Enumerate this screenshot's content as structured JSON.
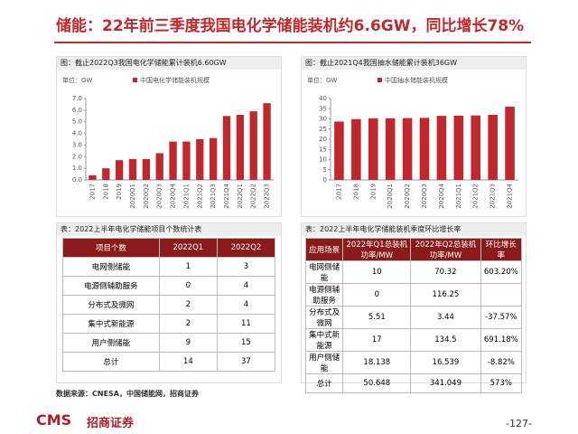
{
  "header": {
    "title": "储能：22年前三季度我国电化学储能装机约6.6GW，同比增长78%"
  },
  "chart_data": [
    {
      "type": "bar",
      "title": "图：截止2022Q3我国电化学储能累计装机6.60GW",
      "unit": "单位：GW",
      "categories": [
        "2017",
        "2018",
        "2019",
        "2020Q1",
        "2020Q2",
        "2020Q3",
        "2020Q4",
        "2021Q1",
        "2021Q2",
        "2021Q3",
        "2021Q4",
        "2022Q1",
        "2022Q2",
        "2022Q3"
      ],
      "series": [
        {
          "name": "中国电化学储能装机规模",
          "color": "#c0282d",
          "values": [
            0.4,
            1.0,
            1.7,
            1.8,
            1.8,
            2.3,
            3.3,
            3.3,
            3.5,
            3.6,
            5.5,
            5.6,
            5.9,
            6.6
          ]
        }
      ],
      "ylim": [
        0,
        7
      ],
      "yticks": [
        {
          "value": 0,
          "label": "0.0"
        },
        {
          "value": 1,
          "label": "1.0"
        },
        {
          "value": 2,
          "label": "2.0"
        },
        {
          "value": 3,
          "label": "3.0"
        },
        {
          "value": 4,
          "label": "4.0"
        },
        {
          "value": 5,
          "label": "5.0"
        },
        {
          "value": 6,
          "label": "6.0"
        },
        {
          "value": 7,
          "label": "7.0"
        }
      ]
    },
    {
      "type": "bar",
      "title": "图：截止2021Q4我国抽水储能累计装机36GW",
      "unit": "单位：GW",
      "categories": [
        "2017",
        "2018",
        "2019",
        "2020Q1",
        "2020Q2",
        "2020Q3",
        "2020Q4",
        "2021Q1",
        "2021Q2",
        "2021Q3",
        "2021Q4"
      ],
      "series": [
        {
          "name": "中国抽水储能装机规模",
          "color": "#c0282d",
          "values": [
            28.7,
            29.9,
            30.3,
            30.3,
            30.4,
            30.5,
            31.5,
            31.6,
            31.7,
            32.0,
            36
          ]
        }
      ],
      "ylim": [
        0,
        40
      ],
      "yticks": [
        0,
        5,
        10,
        15,
        20,
        25,
        30,
        35,
        40
      ]
    }
  ],
  "table1": {
    "title": "表：2022上半年电化学储能项目个数统计表",
    "headers": [
      "项目个数",
      "2022Q1",
      "2022Q2"
    ],
    "rows": [
      [
        "电网侧储能",
        "1",
        "3"
      ],
      [
        "电源侧辅助服务",
        "0",
        "4"
      ],
      [
        "分布式及微网",
        "2",
        "4"
      ],
      [
        "集中式新能源",
        "2",
        "11"
      ],
      [
        "用户侧储能",
        "9",
        "15"
      ],
      [
        "总计",
        "14",
        "37"
      ]
    ]
  },
  "table2": {
    "title": "表：2022上半年电化学储能装机季度环比增长率",
    "headers": [
      "应用场景",
      "2022年Q1总装机功率/MW",
      "2022年Q2总装机功率/MW",
      "环比增长率"
    ],
    "rows": [
      [
        "电网侧储能",
        "10",
        "70.32",
        "603.20%"
      ],
      [
        "电源侧辅助服务",
        "0",
        "116.25",
        null
      ],
      [
        "分布式及微网",
        "5.51",
        "3.44",
        "-37.57%"
      ],
      [
        "集中式新能源",
        "17",
        "134.5",
        "691.18%"
      ],
      [
        "用户侧储能",
        "18.138",
        "16.539",
        "-8.82%"
      ],
      [
        "总计",
        "50.648",
        "341.049",
        "573%"
      ]
    ]
  },
  "footer": {
    "source": "数据来源：CNESA，中国储能网，招商证券",
    "logo": "CMS",
    "logo_cn": "招商证券",
    "page": "-127-"
  }
}
